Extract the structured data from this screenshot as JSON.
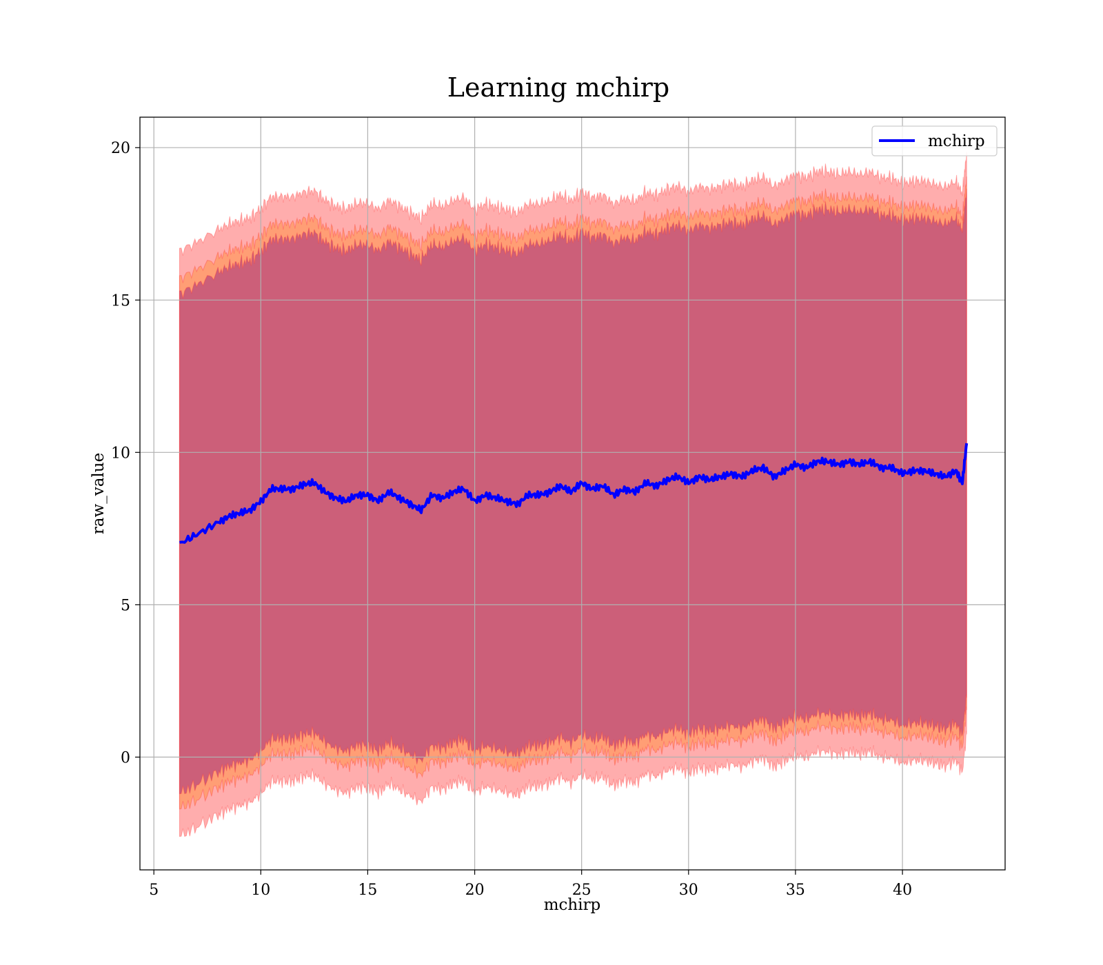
{
  "chart_data": {
    "type": "line",
    "title": "Learning mchirp",
    "xlabel": "mchirp",
    "ylabel": "raw_value",
    "xlim": [
      4.35,
      44.8
    ],
    "ylim": [
      -3.7,
      21.0
    ],
    "xticks": [
      5,
      10,
      15,
      20,
      25,
      30,
      35,
      40
    ],
    "yticks": [
      0,
      5,
      10,
      15,
      20
    ],
    "grid": true,
    "legend": {
      "placement": "top-right",
      "entries": [
        "mchirp"
      ]
    },
    "colors": {
      "line": "#0000ff",
      "band_outer": "#ff0000",
      "band_mid": "#ff8000",
      "band_inner": "#800080",
      "band_edge": "#ff3030"
    },
    "series": [
      {
        "name": "mchirp",
        "x": [
          6.2,
          7.0,
          8.0,
          8.5,
          9.0,
          9.5,
          10.0,
          10.5,
          11.0,
          11.5,
          12.0,
          12.5,
          13.0,
          13.5,
          14.0,
          14.5,
          15.0,
          15.5,
          16.0,
          16.5,
          17.0,
          17.5,
          18.0,
          18.5,
          19.0,
          19.5,
          20.0,
          20.5,
          21.0,
          21.5,
          22.0,
          22.5,
          23.0,
          23.5,
          24.0,
          24.5,
          25.0,
          25.5,
          26.0,
          26.5,
          27.0,
          27.5,
          28.0,
          28.5,
          29.0,
          29.5,
          30.0,
          30.5,
          31.0,
          31.5,
          32.0,
          32.5,
          33.0,
          33.5,
          34.0,
          34.5,
          35.0,
          35.5,
          36.0,
          36.5,
          37.0,
          37.5,
          38.0,
          38.5,
          39.0,
          39.5,
          40.0,
          40.5,
          41.0,
          41.5,
          42.0,
          42.5,
          42.8,
          43.0
        ],
        "y": [
          7.0,
          7.3,
          7.7,
          7.9,
          8.0,
          8.1,
          8.4,
          8.8,
          8.8,
          8.8,
          8.95,
          9.0,
          8.7,
          8.5,
          8.4,
          8.6,
          8.6,
          8.4,
          8.7,
          8.5,
          8.3,
          8.1,
          8.6,
          8.5,
          8.7,
          8.8,
          8.4,
          8.6,
          8.5,
          8.4,
          8.3,
          8.6,
          8.6,
          8.7,
          8.9,
          8.7,
          9.0,
          8.8,
          8.9,
          8.6,
          8.8,
          8.7,
          9.0,
          8.9,
          9.1,
          9.2,
          9.0,
          9.2,
          9.1,
          9.2,
          9.3,
          9.2,
          9.4,
          9.5,
          9.2,
          9.4,
          9.6,
          9.5,
          9.7,
          9.7,
          9.6,
          9.7,
          9.6,
          9.7,
          9.5,
          9.5,
          9.3,
          9.4,
          9.4,
          9.3,
          9.2,
          9.4,
          9.0,
          10.3
        ]
      }
    ],
    "bands": [
      {
        "level": "outer",
        "half_width_start": 9.6,
        "half_width_end": 9.5
      },
      {
        "level": "mid",
        "half_width_start": 8.7,
        "half_width_end": 8.7
      },
      {
        "level": "inner",
        "half_width_start": 8.2,
        "half_width_end": 8.3
      }
    ]
  }
}
